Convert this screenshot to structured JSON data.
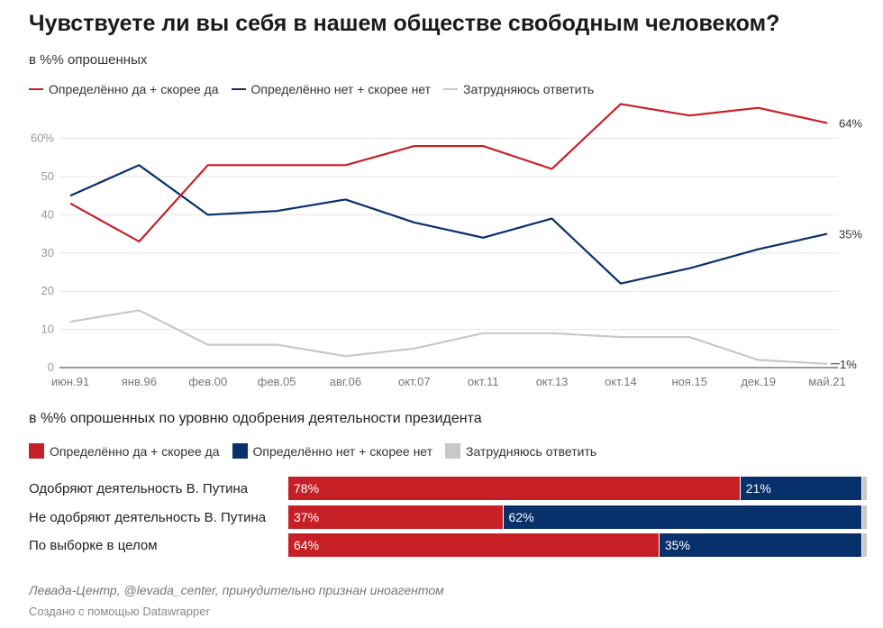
{
  "title": "Чувствуете ли вы себя в нашем обществе свободным человеком?",
  "subtitle": "в %% опрошенных",
  "colors": {
    "yes": "#c62026",
    "no": "#08306b",
    "unsure": "#c8c8c8"
  },
  "legend": {
    "yes": "Определённо да + скорее да",
    "no": "Определённо нет + скорее нет",
    "unsure": "Затрудняюсь ответить"
  },
  "chart_data": [
    {
      "type": "line",
      "title": "Чувствуете ли вы себя в нашем обществе свободным человеком?",
      "ylabel": "в %% опрошенных",
      "x": [
        "июн.91",
        "янв.96",
        "фев.00",
        "фев.05",
        "авг.06",
        "окт.07",
        "окт.11",
        "окт.13",
        "окт.14",
        "ноя.15",
        "дек.19",
        "май.21"
      ],
      "yticks": [
        "0",
        "10",
        "20",
        "30",
        "40",
        "50",
        "60%"
      ],
      "ylim": [
        0,
        70
      ],
      "series": [
        {
          "name": "Определённо да + скорее да",
          "color": "#c62026",
          "values": [
            43,
            33,
            53,
            53,
            53,
            58,
            58,
            52,
            69,
            66,
            68,
            64
          ],
          "end_label": "64%"
        },
        {
          "name": "Определённо нет + скорее нет",
          "color": "#08306b",
          "values": [
            45,
            53,
            40,
            41,
            44,
            38,
            34,
            39,
            22,
            26,
            31,
            35
          ],
          "end_label": "35%"
        },
        {
          "name": "Затрудняюсь ответить",
          "color": "#c8c8c8",
          "values": [
            12,
            15,
            6,
            6,
            3,
            5,
            9,
            9,
            8,
            8,
            2,
            1
          ],
          "end_label": "1%"
        }
      ]
    },
    {
      "type": "bar",
      "stacked": true,
      "title": "в %% опрошенных по уровню одобрения деятельности президента",
      "categories": [
        "Одобряют деятельность В. Путина",
        "Не одобряют деятельность В. Путина",
        "По выборке в целом"
      ],
      "series": [
        {
          "name": "Определённо да + скорее да",
          "color": "#c62026",
          "values": [
            78,
            37,
            64
          ],
          "labels": [
            "78%",
            "37%",
            "64%"
          ]
        },
        {
          "name": "Определённо нет + скорее нет",
          "color": "#08306b",
          "values": [
            21,
            62,
            35
          ],
          "labels": [
            "21%",
            "62%",
            "35%"
          ]
        },
        {
          "name": "Затрудняюсь ответить",
          "color": "#c8c8c8",
          "values": [
            1,
            1,
            1
          ],
          "labels": [
            "",
            "",
            ""
          ]
        }
      ]
    }
  ],
  "section2": {
    "title": "в %% опрошенных по уровню одобрения деятельности президента"
  },
  "footer": {
    "source": "Левада-Центр, @levada_center, принудительно признан иноагентом",
    "credit": "Создано с помощью Datawrapper"
  }
}
